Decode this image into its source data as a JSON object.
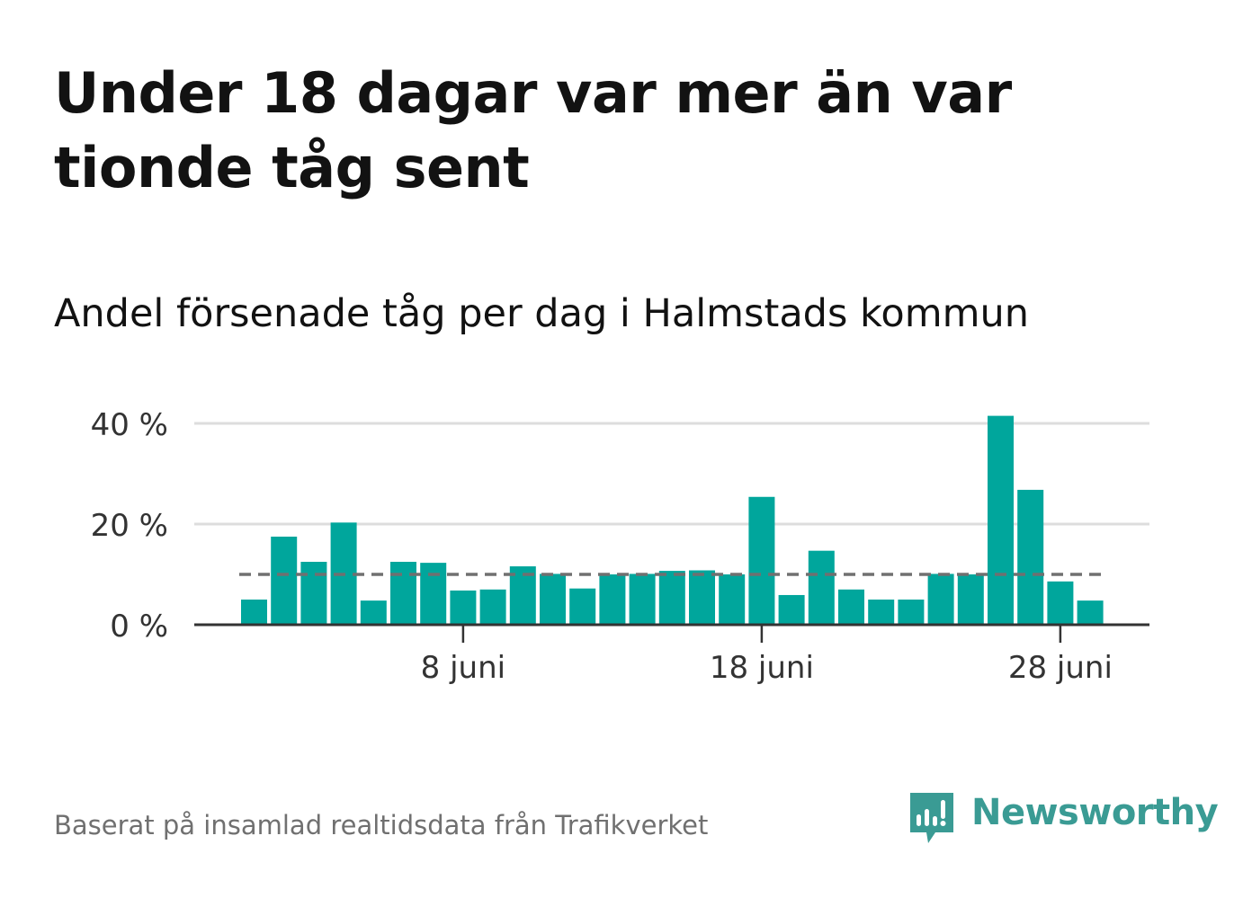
{
  "header": {
    "title": "Under 18 dagar var mer än var tionde tåg sent",
    "subtitle": "Andel försenade tåg per dag i Halmstads kommun"
  },
  "footer": {
    "source": "Baserat på insamlad realtidsdata från Trafikverket",
    "brand": "Newsworthy"
  },
  "colors": {
    "bar": "#00a69c",
    "reference_line": "#707070",
    "gridline": "#dddddd",
    "axis": "#333333",
    "brand": "#3a9b94"
  },
  "chart_data": {
    "type": "bar",
    "title": "Under 18 dagar var mer än var tionde tåg sent",
    "subtitle": "Andel försenade tåg per dag i Halmstads kommun",
    "x": [
      "2020-06-01",
      "2020-06-02",
      "2020-06-03",
      "2020-06-04",
      "2020-06-05",
      "2020-06-06",
      "2020-06-07",
      "2020-06-08",
      "2020-06-09",
      "2020-06-10",
      "2020-06-11",
      "2020-06-12",
      "2020-06-13",
      "2020-06-14",
      "2020-06-15",
      "2020-06-16",
      "2020-06-17",
      "2020-06-18",
      "2020-06-19",
      "2020-06-20",
      "2020-06-21",
      "2020-06-22",
      "2020-06-23",
      "2020-06-24",
      "2020-06-25",
      "2020-06-26",
      "2020-06-27",
      "2020-06-28",
      "2020-06-29"
    ],
    "values": [
      5,
      17.5,
      12.5,
      20.3,
      4.8,
      12.5,
      12.3,
      6.8,
      7.0,
      11.6,
      10.1,
      7.2,
      10.0,
      10.1,
      10.7,
      10.8,
      10.0,
      25.4,
      5.9,
      14.7,
      7.0,
      5.0,
      5.0,
      10.1,
      10.0,
      41.5,
      26.8,
      8.6,
      4.8
    ],
    "reference_line": 10,
    "ylim": [
      0,
      42
    ],
    "yticks": [
      0,
      20,
      40
    ],
    "ytick_labels": [
      "0 %",
      "20 %",
      "40 %"
    ],
    "xticks": [
      {
        "date": "2020-06-08",
        "label": "8 juni"
      },
      {
        "date": "2020-06-18",
        "label": "18 juni"
      },
      {
        "date": "2020-06-28",
        "label": "28 juni"
      }
    ],
    "xlabel": "",
    "ylabel": "",
    "grid": true
  }
}
